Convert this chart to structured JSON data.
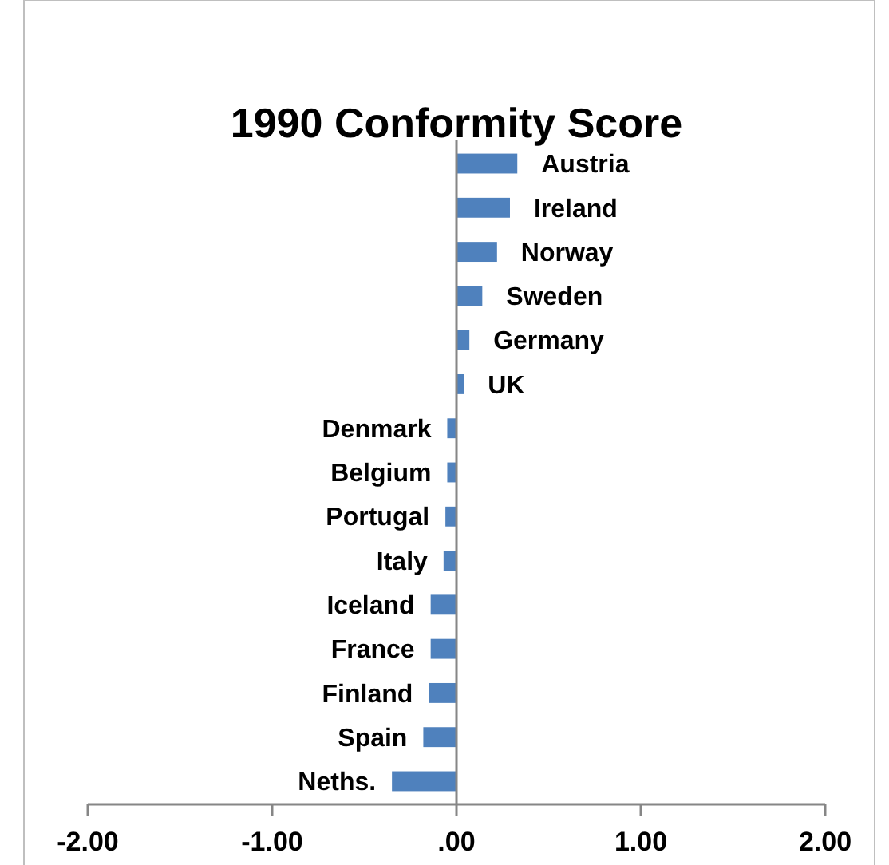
{
  "chart_data": {
    "type": "bar",
    "orientation": "horizontal",
    "title": "1990 Conformity Score",
    "categories": [
      "Austria",
      "Ireland",
      "Norway",
      "Sweden",
      "Germany",
      "UK",
      "Denmark",
      "Belgium",
      "Portugal",
      "Italy",
      "Iceland",
      "France",
      "Finland",
      "Spain",
      "Neths."
    ],
    "values": [
      0.33,
      0.29,
      0.22,
      0.14,
      0.07,
      0.04,
      -0.05,
      -0.05,
      -0.06,
      -0.07,
      -0.14,
      -0.14,
      -0.15,
      -0.18,
      -0.35
    ],
    "color": "#4f81bd",
    "xlim": [
      -2,
      2
    ],
    "xticks": [
      {
        "value": -2,
        "label": "-2.00"
      },
      {
        "value": -1,
        "label": "-1.00"
      },
      {
        "value": 0,
        "label": ".00"
      },
      {
        "value": 1,
        "label": "1.00"
      },
      {
        "value": 2,
        "label": "2.00"
      }
    ],
    "grid": false
  }
}
